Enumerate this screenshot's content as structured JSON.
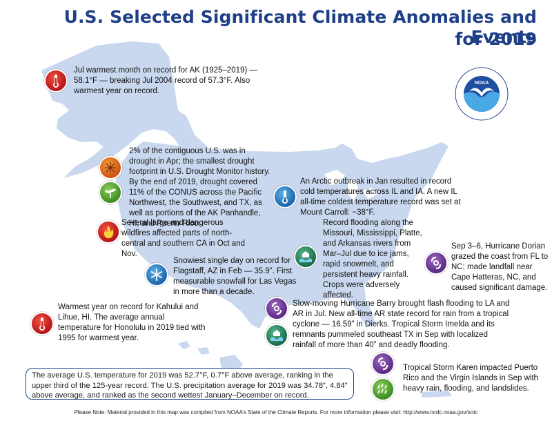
{
  "title_line1": "U.S. Selected Significant Climate Anomalies and Events",
  "title_line2": "for 2019",
  "logo": {
    "text": "NOAA",
    "ring_top": "NATIONAL OCEANIC AND ATMOSPHERIC ADMINISTRATION",
    "ring_bottom": "U.S. DEPARTMENT OF COMMERCE"
  },
  "events": {
    "alaska": "Jul warmest month on record for AK (1925–2019) — 58.1°F — breaking Jul 2004 record of 57.3°F. Also warmest year on record.",
    "drought": "2% of the contiguous U.S. was in drought in Apr; the smallest drought footprint in U.S. Drought Monitor history. By the end of 2019, drought covered 11% of the CONUS across the Pacific Northwest, the Southwest, and TX, as well as portions of the AK Panhandle, HI, and Puerto Rico.",
    "wildfires": "Several large and dangerous wildfires affected parts of north-central and southern CA in Oct and Nov.",
    "snowfall": "Snowiest single day on record for Flagstaff, AZ in Feb — 35.9”. First measurable snowfall for Las Vegas in more than a decade.",
    "hawaii": "Warmest year on record for Kahului and Lihue, HI. The average annual temperature for Honolulu in 2019 tied with 1995 for warmest year.",
    "arctic": "An Arctic outbreak in Jan resulted in record cold temperatures across IL and IA. A new IL all-time coldest temperature record was set at Mount Carroll: −38°F.",
    "flooding": "Record flooding along the Missouri, Mississippi, Platte, and Arkansas rivers from Mar–Jul due to ice jams, rapid snowmelt, and persistent heavy rainfall. Crops were adversely affected.",
    "dorian": "Sep 3–6, Hurricane Dorian grazed the coast from FL to NC; made landfall near Cape Hatteras, NC, and caused significant damage.",
    "barry": "Slow-moving Hurricane Barry brought flash flooding to LA and AR in Jul. New all-time AR state record for rain from a tropical cyclone — 16.59” in Dierks. Tropical Storm Imelda and its remnants pummeled southeast TX in Sep with localized rainfall of more than 40” and deadly flooding.",
    "karen": "Tropical Storm Karen impacted Puerto Rico and the Virgin Islands in Sep with heavy rain, flooding, and landslides."
  },
  "summary": "The average U.S. temperature for 2019 was 52.7°F, 0.7°F above average, ranking in the upper third of the 125-year record. The U.S. precipitation average for 2019 was 34.78”, 4.84” above average, and ranked as the second wettest January–December on record.",
  "footnote": "Please Note: Material provided in this map was compiled from NOAA’s State of the Climate Reports. For more information please visit: http://www.ncdc.noaa.gov/sotc",
  "colors": {
    "title": "#1f3f86",
    "map": "#c9d8ee",
    "summary_border": "#1f3f86"
  },
  "icons": [
    "thermometer-hot-icon",
    "drought-icon",
    "dry-plant-icon",
    "wildfire-icon",
    "snowflake-icon",
    "thermometer-cold-icon",
    "flood-icon",
    "hurricane-icon",
    "heavy-rain-icon"
  ]
}
